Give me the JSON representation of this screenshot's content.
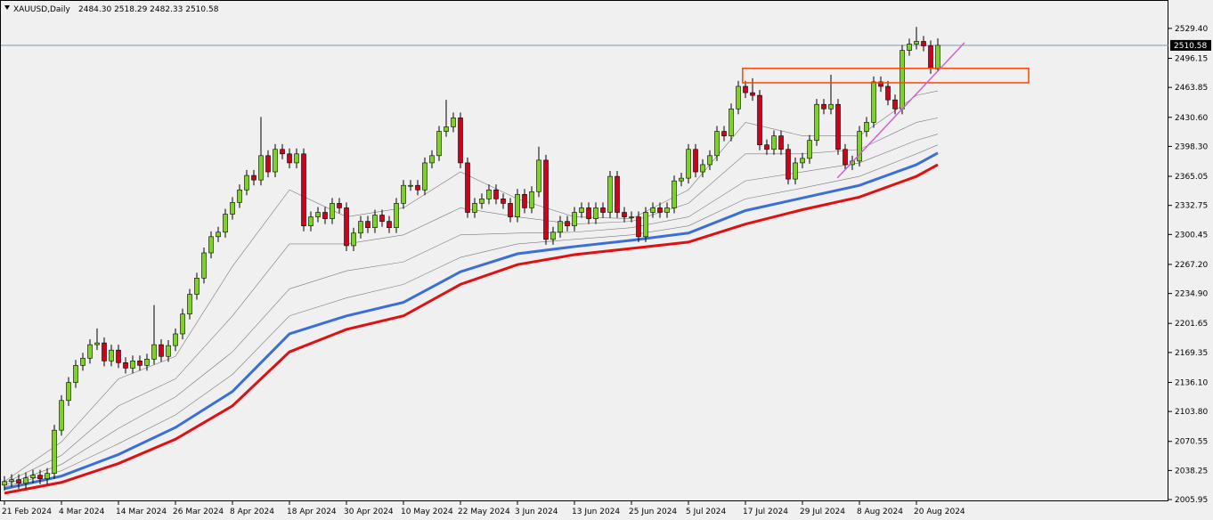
{
  "chart_data": {
    "type": "candlestick",
    "title": "XAUUSD,Daily",
    "ohlc_label": "2484.30 2518.29 2482.33 2510.58",
    "categories": [
      "21 Feb 2024",
      null,
      null,
      null,
      null,
      null,
      null,
      null,
      "4 Mar 2024",
      null,
      null,
      null,
      null,
      null,
      null,
      null,
      "14 Mar 2024",
      null,
      null,
      null,
      null,
      null,
      null,
      null,
      "26 Mar 2024",
      null,
      null,
      null,
      null,
      null,
      null,
      null,
      "8 Apr 2024",
      null,
      null,
      null,
      null,
      null,
      null,
      null,
      "18 Apr 2024",
      null,
      null,
      null,
      null,
      null,
      null,
      null,
      "30 Apr 2024",
      null,
      null,
      null,
      null,
      null,
      null,
      null,
      "10 May 2024",
      null,
      null,
      null,
      null,
      null,
      null,
      null,
      "22 May 2024",
      null,
      null,
      null,
      null,
      null,
      null,
      null,
      "3 Jun 2024",
      null,
      null,
      null,
      null,
      null,
      null,
      null,
      "13 Jun 2024",
      null,
      null,
      null,
      null,
      null,
      null,
      null,
      "25 Jun 2024",
      null,
      null,
      null,
      null,
      null,
      null,
      null,
      "5 Jul 2024",
      null,
      null,
      null,
      null,
      null,
      null,
      null,
      "17 Jul 2024",
      null,
      null,
      null,
      null,
      null,
      null,
      null,
      "29 Jul 2024",
      null,
      null,
      null,
      null,
      null,
      null,
      null,
      "8 Aug 2024",
      null,
      null,
      null,
      null,
      null,
      null,
      null,
      "20 Aug 2024",
      null,
      null,
      null
    ],
    "open": [
      2022,
      2026,
      2028,
      2024,
      2030,
      2033,
      2029,
      2035,
      2083,
      2116,
      2136,
      2155,
      2163,
      2178,
      2180,
      2160,
      2172,
      2158,
      2152,
      2160,
      2155,
      2162,
      2178,
      2165,
      2177,
      2190,
      2212,
      2234,
      2252,
      2280,
      2298,
      2303,
      2323,
      2336,
      2350,
      2366,
      2361,
      2388,
      2370,
      2395,
      2390,
      2380,
      2390,
      2310,
      2320,
      2325,
      2318,
      2335,
      2330,
      2288,
      2302,
      2315,
      2308,
      2322,
      2315,
      2308,
      2335,
      2355,
      2355,
      2350,
      2380,
      2388,
      2415,
      2420,
      2430,
      2380,
      2325,
      2335,
      2340,
      2350,
      2340,
      2335,
      2320,
      2345,
      2330,
      2348,
      2383,
      2295,
      2303,
      2315,
      2310,
      2325,
      2330,
      2318,
      2330,
      2325,
      2365,
      2325,
      2320,
      2320,
      2298,
      2325,
      2330,
      2325,
      2330,
      2360,
      2363,
      2395,
      2370,
      2378,
      2388,
      2415,
      2410,
      2440,
      2465,
      2458,
      2455,
      2400,
      2395,
      2410,
      2395,
      2362,
      2380,
      2385,
      2405,
      2445,
      2440,
      2445,
      2395,
      2378,
      2382,
      2415,
      2425,
      2470,
      2465,
      2450,
      2440,
      2505,
      2512,
      2515,
      2510,
      2484.3
    ],
    "high": [
      2032,
      2034,
      2034,
      2036,
      2039,
      2039,
      2041,
      2089,
      2122,
      2142,
      2161,
      2169,
      2184,
      2196,
      2186,
      2178,
      2178,
      2164,
      2166,
      2166,
      2168,
      2222,
      2184,
      2183,
      2196,
      2218,
      2240,
      2258,
      2286,
      2304,
      2309,
      2329,
      2342,
      2356,
      2372,
      2372,
      2431,
      2394,
      2401,
      2401,
      2396,
      2396,
      2396,
      2326,
      2331,
      2331,
      2341,
      2341,
      2336,
      2308,
      2321,
      2321,
      2328,
      2328,
      2321,
      2341,
      2361,
      2361,
      2361,
      2386,
      2394,
      2421,
      2450,
      2436,
      2436,
      2386,
      2341,
      2346,
      2356,
      2356,
      2346,
      2341,
      2351,
      2351,
      2354,
      2398,
      2389,
      2309,
      2321,
      2321,
      2331,
      2336,
      2336,
      2336,
      2336,
      2371,
      2371,
      2331,
      2326,
      2326,
      2331,
      2336,
      2336,
      2336,
      2366,
      2369,
      2401,
      2401,
      2384,
      2394,
      2421,
      2421,
      2446,
      2471,
      2471,
      2474,
      2461,
      2406,
      2416,
      2416,
      2401,
      2386,
      2391,
      2411,
      2451,
      2451,
      2478,
      2451,
      2401,
      2388,
      2421,
      2431,
      2476,
      2476,
      2471,
      2456,
      2511,
      2518,
      2531,
      2521,
      2516,
      2518.29
    ],
    "low": [
      2016,
      2020,
      2018,
      2018,
      2024,
      2023,
      2023,
      2029,
      2077,
      2110,
      2130,
      2149,
      2157,
      2172,
      2154,
      2154,
      2152,
      2146,
      2146,
      2149,
      2149,
      2156,
      2159,
      2159,
      2171,
      2184,
      2206,
      2228,
      2246,
      2274,
      2292,
      2297,
      2317,
      2330,
      2344,
      2355,
      2355,
      2364,
      2364,
      2384,
      2374,
      2374,
      2304,
      2304,
      2314,
      2312,
      2312,
      2324,
      2282,
      2282,
      2296,
      2302,
      2302,
      2309,
      2302,
      2302,
      2329,
      2349,
      2344,
      2344,
      2374,
      2382,
      2409,
      2414,
      2374,
      2319,
      2319,
      2329,
      2334,
      2334,
      2329,
      2314,
      2314,
      2324,
      2324,
      2342,
      2289,
      2289,
      2297,
      2304,
      2304,
      2319,
      2312,
      2312,
      2319,
      2319,
      2319,
      2314,
      2314,
      2292,
      2292,
      2319,
      2319,
      2319,
      2324,
      2354,
      2357,
      2364,
      2364,
      2372,
      2382,
      2404,
      2404,
      2434,
      2452,
      2449,
      2394,
      2389,
      2389,
      2389,
      2356,
      2356,
      2374,
      2379,
      2399,
      2434,
      2434,
      2389,
      2372,
      2372,
      2376,
      2409,
      2419,
      2459,
      2444,
      2434,
      2434,
      2499,
      2506,
      2504,
      2479,
      2482.33
    ],
    "close": [
      2026,
      2028,
      2024,
      2030,
      2033,
      2029,
      2035,
      2083,
      2116,
      2136,
      2155,
      2163,
      2178,
      2180,
      2160,
      2172,
      2158,
      2152,
      2160,
      2155,
      2162,
      2178,
      2165,
      2177,
      2190,
      2212,
      2234,
      2252,
      2280,
      2298,
      2303,
      2323,
      2336,
      2350,
      2366,
      2361,
      2388,
      2370,
      2395,
      2390,
      2380,
      2390,
      2310,
      2320,
      2325,
      2318,
      2335,
      2330,
      2288,
      2302,
      2315,
      2308,
      2322,
      2315,
      2308,
      2335,
      2355,
      2355,
      2350,
      2380,
      2388,
      2415,
      2420,
      2430,
      2380,
      2325,
      2335,
      2340,
      2350,
      2340,
      2335,
      2320,
      2345,
      2330,
      2348,
      2383,
      2295,
      2303,
      2315,
      2310,
      2325,
      2330,
      2318,
      2330,
      2325,
      2365,
      2325,
      2320,
      2320,
      2298,
      2325,
      2330,
      2325,
      2330,
      2360,
      2363,
      2395,
      2370,
      2378,
      2388,
      2415,
      2410,
      2440,
      2465,
      2458,
      2455,
      2400,
      2395,
      2410,
      2395,
      2362,
      2380,
      2385,
      2405,
      2445,
      2440,
      2445,
      2395,
      2378,
      2382,
      2415,
      2425,
      2470,
      2465,
      2450,
      2440,
      2505,
      2512,
      2515,
      2510,
      2485,
      2510.58
    ],
    "up_color": "#7ed321",
    "down_color": "#d0021b",
    "lines": {
      "x": [
        0,
        8,
        16,
        24,
        32,
        40,
        48,
        56,
        64,
        72,
        80,
        88,
        96,
        104,
        112,
        120,
        128,
        131
      ],
      "series": [
        {
          "color": "#7a7a7a",
          "width": 0.6,
          "values": [
            2026,
            2070,
            2140,
            2165,
            2265,
            2350,
            2320,
            2330,
            2370,
            2340,
            2320,
            2318,
            2350,
            2425,
            2410,
            2410,
            2455,
            2460
          ]
        },
        {
          "color": "#7a7a7a",
          "width": 0.6,
          "values": [
            2024,
            2055,
            2110,
            2140,
            2210,
            2290,
            2290,
            2300,
            2330,
            2320,
            2312,
            2315,
            2335,
            2390,
            2390,
            2395,
            2425,
            2430
          ]
        },
        {
          "color": "#7a7a7a",
          "width": 0.6,
          "values": [
            2022,
            2045,
            2085,
            2120,
            2170,
            2240,
            2260,
            2270,
            2300,
            2302,
            2303,
            2308,
            2320,
            2360,
            2370,
            2380,
            2405,
            2412
          ]
        },
        {
          "color": "#7a7a7a",
          "width": 0.6,
          "values": [
            2020,
            2038,
            2068,
            2100,
            2145,
            2210,
            2230,
            2245,
            2275,
            2290,
            2295,
            2300,
            2310,
            2340,
            2352,
            2365,
            2390,
            2400
          ]
        },
        {
          "color": "#e01010",
          "width": 3,
          "values": [
            2013,
            2025,
            2046,
            2073,
            2110,
            2170,
            2195,
            2210,
            2245,
            2267,
            2278,
            2285,
            2292,
            2312,
            2328,
            2342,
            2365,
            2378
          ]
        },
        {
          "color": "#3b6fd8",
          "width": 3,
          "values": [
            2018,
            2032,
            2056,
            2086,
            2126,
            2190,
            2210,
            2225,
            2259,
            2279,
            2287,
            2294,
            2302,
            2327,
            2341,
            2355,
            2378,
            2391
          ]
        }
      ]
    },
    "rectangle": {
      "x": [
        103.6,
        143.75
      ],
      "y": [
        2469,
        2485
      ],
      "color": "#ff4500"
    },
    "trendline": {
      "x": [
        116.9,
        134.75
      ],
      "y": [
        2363.2,
        2513.6
      ],
      "color": "#d060d0"
    },
    "price_line_color": "#6e8ca0",
    "ylim": [
      2004,
      2557
    ],
    "yticks": [
      {
        "value": 2005.95,
        "label": "2005.95"
      },
      {
        "value": 2038.25,
        "label": "2038.25"
      },
      {
        "value": 2070.55,
        "label": "2070.55"
      },
      {
        "value": 2103.8,
        "label": "2103.80"
      },
      {
        "value": 2136.1,
        "label": "2136.10"
      },
      {
        "value": 2169.35,
        "label": "2169.35"
      },
      {
        "value": 2201.65,
        "label": "2201.65"
      },
      {
        "value": 2234.9,
        "label": "2234.90"
      },
      {
        "value": 2267.2,
        "label": "2267.20"
      },
      {
        "value": 2300.45,
        "label": "2300.45"
      },
      {
        "value": 2332.75,
        "label": "2332.75"
      },
      {
        "value": 2365.05,
        "label": "2365.05"
      },
      {
        "value": 2398.3,
        "label": "2398.30"
      },
      {
        "value": 2430.6,
        "label": "2430.60"
      },
      {
        "value": 2463.85,
        "label": "2463.85"
      },
      {
        "value": 2496.15,
        "label": "2496.15"
      },
      {
        "value": 2529.4,
        "label": "2529.40"
      }
    ]
  }
}
